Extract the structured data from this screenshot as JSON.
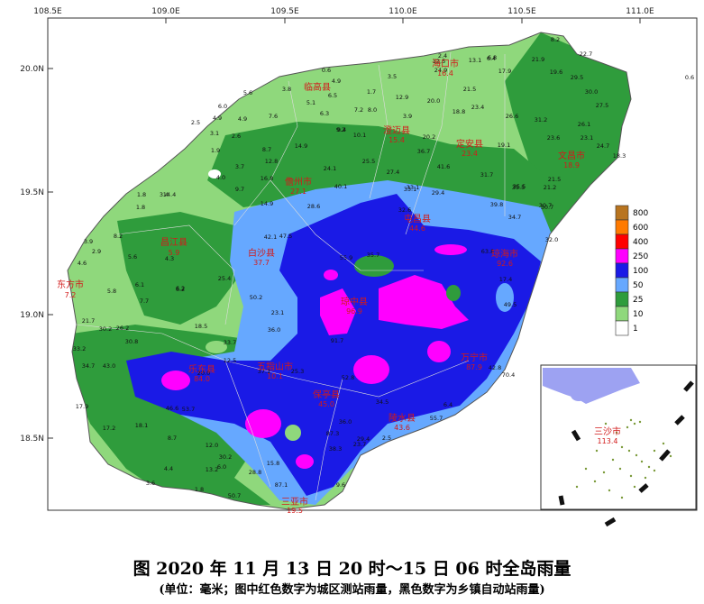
{
  "lon_ticks": [
    "108.5E",
    "109.0E",
    "109.5E",
    "110.0E",
    "110.5E",
    "111.0E"
  ],
  "lat_ticks": [
    "20.0N",
    "19.5N",
    "19.0N",
    "18.5N"
  ],
  "legend": {
    "levels": [
      "800",
      "600",
      "400",
      "250",
      "100",
      "50",
      "25",
      "10",
      "1"
    ],
    "colors": [
      "#b8741f",
      "#ff7a00",
      "#ff0000",
      "#ff00ff",
      "#1a1ae6",
      "#66a8ff",
      "#2f9c3c",
      "#8fd87c",
      "#ffffff"
    ]
  },
  "cities": [
    {
      "name": "海口市",
      "value": "16.4"
    },
    {
      "name": "临高县",
      "value": ""
    },
    {
      "name": "澄迈县",
      "value": "15.4"
    },
    {
      "name": "定安县",
      "value": "23.4"
    },
    {
      "name": "文昌市",
      "value": "18.9"
    },
    {
      "name": "儋州市",
      "value": "27.1"
    },
    {
      "name": "屯昌县",
      "value": "44.6"
    },
    {
      "name": "琼海市",
      "value": "92.6"
    },
    {
      "name": "昌江县",
      "value": "5.9"
    },
    {
      "name": "白沙县",
      "value": "37.7"
    },
    {
      "name": "琼中县",
      "value": "96.9"
    },
    {
      "name": "东方市",
      "value": "7.2"
    },
    {
      "name": "万宁市",
      "value": "87.9"
    },
    {
      "name": "乐东县",
      "value": "84.0"
    },
    {
      "name": "五指山市",
      "value": "10.1"
    },
    {
      "name": "保亭县",
      "value": "45.0"
    },
    {
      "name": "陵水县",
      "value": "43.6"
    },
    {
      "name": "三亚市",
      "value": "19.5"
    }
  ],
  "inset": {
    "name": "三沙市",
    "value": "113.4"
  },
  "stations": [
    "0.6",
    "4.9",
    "3.8",
    "6.5",
    "1.7",
    "3.5",
    "2.4",
    "9.2",
    "6.4",
    "13.1",
    "8.2",
    "12.5",
    "24.9",
    "6.8",
    "17.9",
    "21.9",
    "19.6",
    "22.7",
    "0.6",
    "6.0",
    "5.6",
    "4.9",
    "7.6",
    "7.2",
    "8.0",
    "12.9",
    "20.0",
    "21.5",
    "29.5",
    "30.0",
    "2.5",
    "4.9",
    "5.1",
    "6.3",
    "18.8",
    "23.4",
    "26.6",
    "31.2",
    "27.5",
    "1.9",
    "3.1",
    "2.6",
    "9.4",
    "10.1",
    "3.9",
    "20.2",
    "19.1",
    "23.6",
    "26.1",
    "23.1",
    "8.7",
    "14.9",
    "12.8",
    "24.1",
    "25.5",
    "36.7",
    "41.6",
    "31.7",
    "35.5",
    "21.2",
    "24.7",
    "18.3",
    "4.0",
    "3.7",
    "9.7",
    "16.8",
    "27.4",
    "33.1",
    "29.4",
    "39.8",
    "35.5",
    "30.7",
    "21.5",
    "1.8",
    "3.4",
    "1.8",
    "14.4",
    "14.9",
    "28.6",
    "40.1",
    "33.1",
    "32.6",
    "34.7",
    "32.0",
    "30.7",
    "8.2",
    "3.9",
    "2.9",
    "5.6",
    "4.3",
    "6.2",
    "42.1",
    "47.5",
    "55.9",
    "35.7",
    "17.4",
    "4.6",
    "5.8",
    "6.1",
    "7.7",
    "6.2",
    "25.4",
    "50.2",
    "23.1",
    "63.8",
    "49.5",
    "21.7",
    "30.2",
    "26.2",
    "18.5",
    "33.7",
    "36.0",
    "91.7",
    "33.2",
    "34.7",
    "43.0",
    "30.8",
    "12.5",
    "37.1",
    "25.3",
    "52.8",
    "42.8",
    "70.4",
    "17.9",
    "46.6",
    "53.7",
    "20.0",
    "87.3",
    "38.3",
    "29.4",
    "34.5",
    "55.7",
    "6.4",
    "17.2",
    "18.1",
    "8.7",
    "12.0",
    "30.2",
    "28.8",
    "36.0",
    "23.7",
    "2.5",
    "4.4",
    "1.8",
    "13.2",
    "6.0",
    "50.7",
    "15.8",
    "87.1",
    "9.6",
    "3.6"
  ]
}
